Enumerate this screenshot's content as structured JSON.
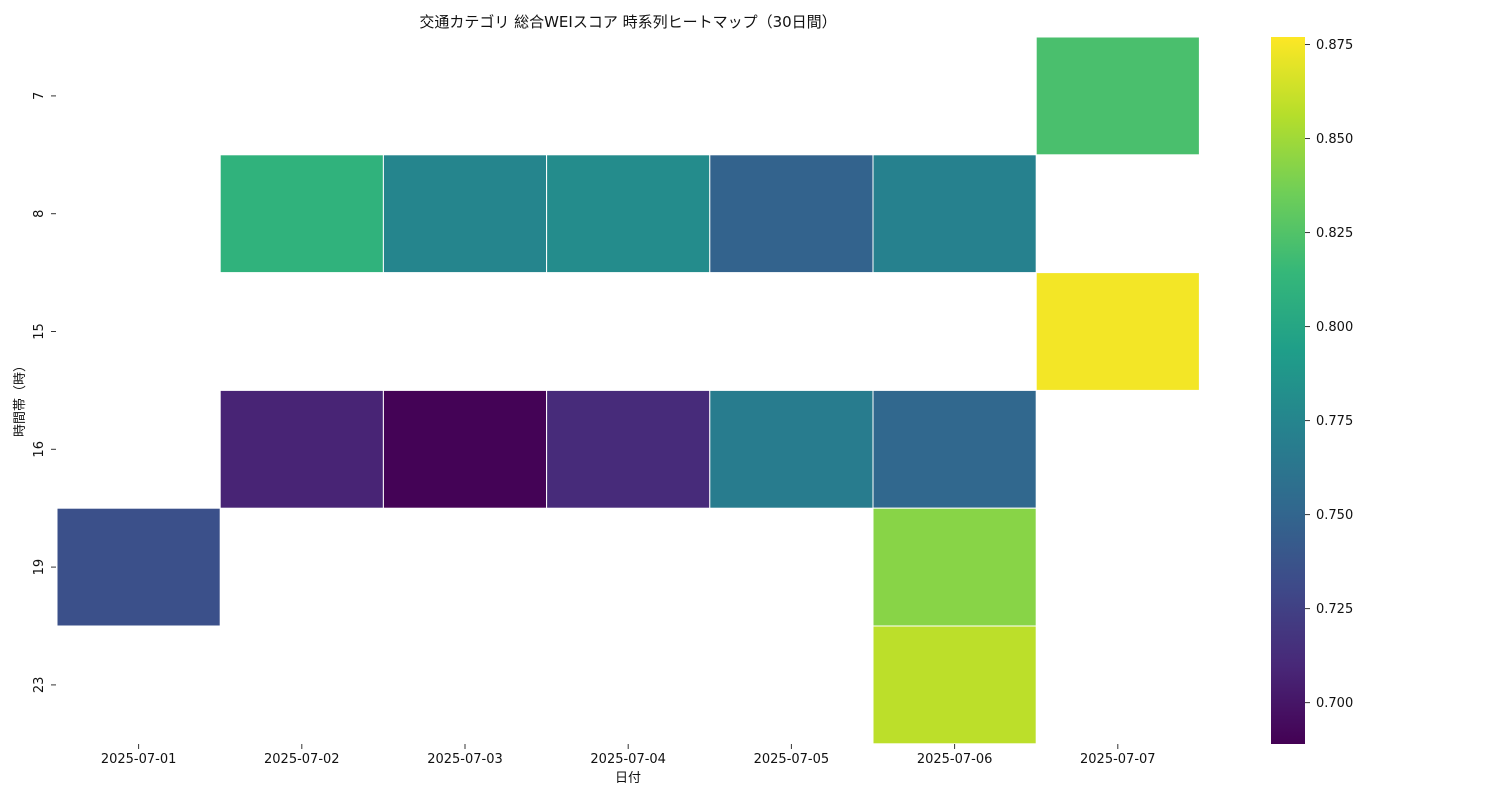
{
  "chart_data": {
    "type": "heatmap",
    "title": "交通カテゴリ 総合WEIスコア 時系列ヒートマップ（30日間）",
    "xlabel": "日付",
    "ylabel": "時間帯（時）",
    "x_categories": [
      "2025-07-01",
      "2025-07-02",
      "2025-07-03",
      "2025-07-04",
      "2025-07-05",
      "2025-07-06",
      "2025-07-07"
    ],
    "y_categories": [
      "7",
      "8",
      "15",
      "16",
      "19",
      "23"
    ],
    "values": [
      [
        null,
        null,
        null,
        null,
        null,
        null,
        0.822
      ],
      [
        null,
        0.81,
        0.775,
        0.78,
        0.748,
        0.772,
        null
      ],
      [
        null,
        null,
        null,
        null,
        null,
        null,
        0.874
      ],
      [
        null,
        0.708,
        0.69,
        0.712,
        0.768,
        0.752,
        null
      ],
      [
        0.735,
        null,
        null,
        null,
        null,
        0.843,
        null
      ],
      [
        null,
        null,
        null,
        null,
        null,
        0.858,
        null
      ]
    ],
    "colormap": "viridis",
    "colorbar": {
      "min": 0.689,
      "max": 0.877,
      "ticks": [
        "0.700",
        "0.725",
        "0.750",
        "0.775",
        "0.800",
        "0.825",
        "0.850",
        "0.875"
      ]
    },
    "grid": false,
    "missing_color": "#ffffff"
  }
}
